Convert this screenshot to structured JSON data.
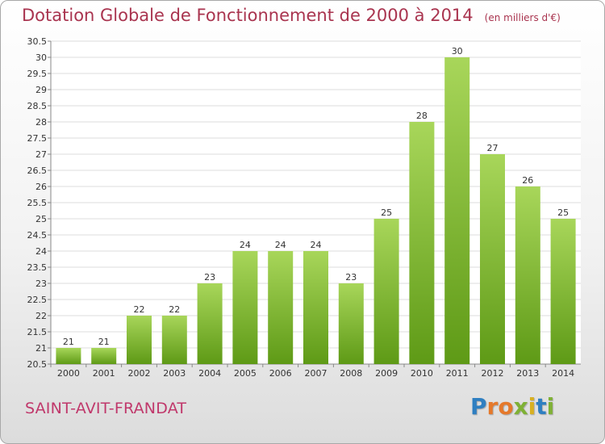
{
  "title": "Dotation Globale de Fonctionnement de 2000 à 2014",
  "subtitle": "(en milliers d'€)",
  "location": "SAINT-AVIT-FRANDAT",
  "logo": {
    "letters": [
      "P",
      "r",
      "o",
      "x",
      "i",
      "t",
      "i"
    ],
    "colors": [
      "#2f7fc1",
      "#e5792b",
      "#e5792b",
      "#7fb135",
      "#d8b021",
      "#2f7fc1",
      "#7fb135"
    ]
  },
  "colors": {
    "title": "#a9344f",
    "bar_light": "#a8d65a",
    "bar_dark": "#5e9a16"
  },
  "chart_data": {
    "type": "bar",
    "categories": [
      "2000",
      "2001",
      "2002",
      "2003",
      "2004",
      "2005",
      "2006",
      "2007",
      "2008",
      "2009",
      "2010",
      "2011",
      "2012",
      "2013",
      "2014"
    ],
    "values": [
      21,
      21,
      22,
      22,
      23,
      24,
      24,
      24,
      23,
      25,
      28,
      30,
      27,
      26,
      25
    ],
    "data_labels": [
      "21",
      "21",
      "22",
      "22",
      "23",
      "24",
      "24",
      "24",
      "23",
      "25",
      "28",
      "30",
      "27",
      "26",
      "25"
    ],
    "ylim": [
      20.5,
      30.5
    ],
    "yticks": [
      "20.5",
      "21",
      "21.5",
      "22",
      "22.5",
      "23",
      "23.5",
      "24",
      "24.5",
      "25",
      "25.5",
      "26",
      "26.5",
      "27",
      "27.5",
      "28",
      "28.5",
      "29",
      "29.5",
      "30",
      "30.5"
    ],
    "title": "Dotation Globale de Fonctionnement de 2000 à 2014",
    "xlabel": "",
    "ylabel": "",
    "grid": true
  }
}
